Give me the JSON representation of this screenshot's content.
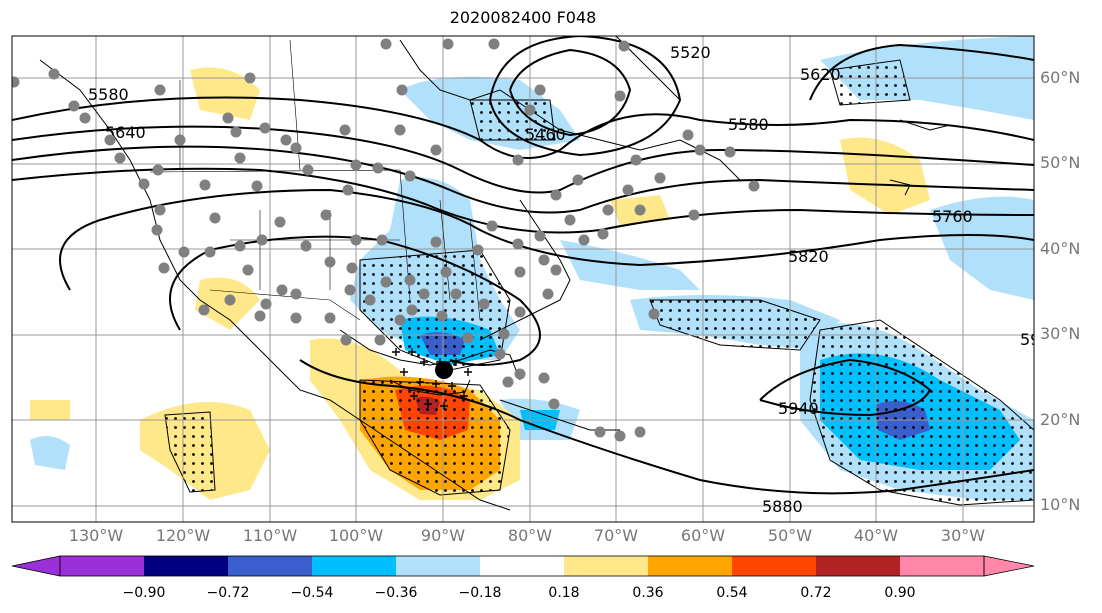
{
  "title": "2020082400 F048",
  "lon_labels": [
    "130°W",
    "120°W",
    "110°W",
    "100°W",
    "90°W",
    "80°W",
    "70°W",
    "60°W",
    "50°W",
    "40°W",
    "30°W"
  ],
  "lat_labels": [
    "60°N",
    "50°N",
    "40°N",
    "30°N",
    "20°N",
    "10°N"
  ],
  "contour_labels": [
    "5580",
    "5640",
    "5460",
    "5520",
    "5620",
    "5580",
    "5760",
    "5820",
    "5940",
    "5880",
    "59"
  ],
  "colorbar": {
    "ticks": [
      "−0.90",
      "−0.72",
      "−0.54",
      "−0.36",
      "−0.18",
      "0.18",
      "0.36",
      "0.54",
      "0.72",
      "0.90"
    ],
    "colors": [
      "#9b30d9",
      "#000080",
      "#3a5fcd",
      "#00bfff",
      "#b0e0fa",
      "#ffffff",
      "#ffe88a",
      "#ffa500",
      "#ff4500",
      "#b22222",
      "#ff88aa"
    ]
  },
  "colors": {
    "light_blue": "#b0e0fa",
    "mid_blue": "#00bfff",
    "dark_blue": "#3a5fcd",
    "yellow": "#ffe88a",
    "orange": "#ffa500",
    "red": "#ff4500",
    "station_gray": "#808080"
  }
}
